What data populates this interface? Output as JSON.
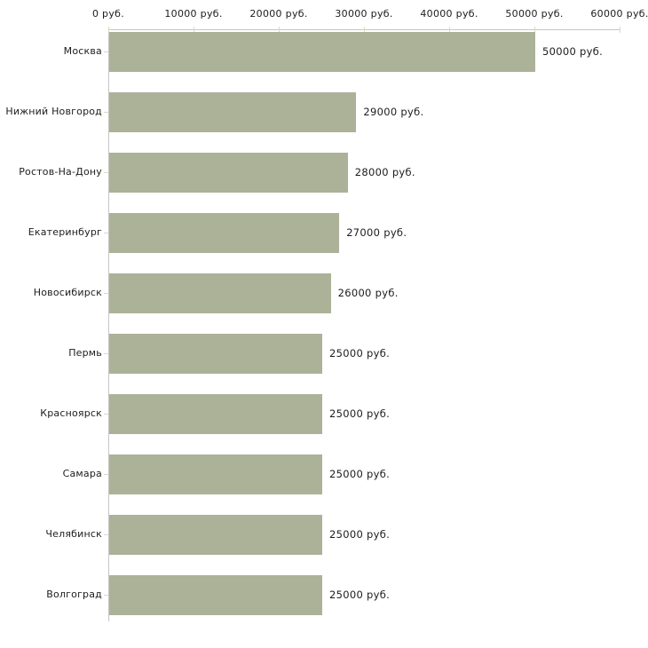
{
  "chart_data": {
    "type": "bar",
    "orientation": "horizontal",
    "title": "",
    "xlabel": "",
    "ylabel": "",
    "unit": "руб.",
    "categories": [
      "Москва",
      "Нижний Новгород",
      "Ростов-На-Дону",
      "Екатеринбург",
      "Новосибирск",
      "Пермь",
      "Красноярск",
      "Самара",
      "Челябинск",
      "Волгоград"
    ],
    "values": [
      50000,
      29000,
      28000,
      27000,
      26000,
      25000,
      25000,
      25000,
      25000,
      25000
    ],
    "value_labels": [
      "50000 руб.",
      "29000 руб.",
      "28000 руб.",
      "27000 руб.",
      "26000 руб.",
      "25000 руб.",
      "25000 руб.",
      "25000 руб.",
      "25000 руб.",
      "25000 руб."
    ],
    "x_ticks": [
      0,
      10000,
      20000,
      30000,
      40000,
      50000,
      60000
    ],
    "x_tick_labels": [
      "0 руб.",
      "10000 руб.",
      "20000 руб.",
      "30000 руб.",
      "40000 руб.",
      "50000 руб.",
      "60000 руб."
    ],
    "xlim": [
      0,
      60000
    ],
    "grid": false,
    "legend": false,
    "axis_labels_position": "top",
    "colors": {
      "bar": "#abb298",
      "axis": "#c6c6c6",
      "tick": "#d8dbbd",
      "text": "#1c1c1c",
      "background": "#ffffff"
    }
  }
}
